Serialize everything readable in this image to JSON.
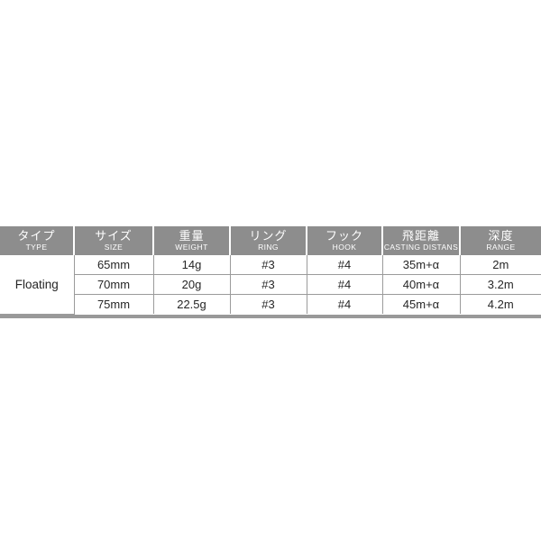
{
  "table": {
    "columns": [
      {
        "jp": "タイプ",
        "en": "TYPE"
      },
      {
        "jp": "サイズ",
        "en": "SIZE"
      },
      {
        "jp": "重量",
        "en": "WEIGHT"
      },
      {
        "jp": "リング",
        "en": "RING"
      },
      {
        "jp": "フック",
        "en": "HOOK"
      },
      {
        "jp": "飛距離",
        "en": "CASTING DISTANS"
      },
      {
        "jp": "深度",
        "en": "RANGE"
      }
    ],
    "type_value": "Floating",
    "rows": [
      {
        "size": "65mm",
        "weight": "14g",
        "ring": "#3",
        "hook": "#4",
        "casting": "35m+α",
        "range": "2m"
      },
      {
        "size": "70mm",
        "weight": "20g",
        "ring": "#3",
        "hook": "#4",
        "casting": "40m+α",
        "range": "3.2m"
      },
      {
        "size": "75mm",
        "weight": "22.5g",
        "ring": "#3",
        "hook": "#4",
        "casting": "45m+α",
        "range": "4.2m"
      }
    ],
    "colors": {
      "header_bg": "#8d8d8d",
      "header_text": "#ffffff",
      "body_text": "#262626",
      "grid_line": "#9b9b9b",
      "bottom_bar": "#999999"
    }
  },
  "chart_data": {
    "type": "table",
    "title": "",
    "columns": [
      "タイプ TYPE",
      "サイズ SIZE",
      "重量 WEIGHT",
      "リング RING",
      "フック HOOK",
      "飛距離 CASTING DISTANS",
      "深度 RANGE"
    ],
    "rows": [
      [
        "Floating",
        "65mm",
        "14g",
        "#3",
        "#4",
        "35m+α",
        "2m"
      ],
      [
        "Floating",
        "70mm",
        "20g",
        "#3",
        "#4",
        "40m+α",
        "3.2m"
      ],
      [
        "Floating",
        "75mm",
        "22.5g",
        "#3",
        "#4",
        "45m+α",
        "4.2m"
      ]
    ]
  }
}
